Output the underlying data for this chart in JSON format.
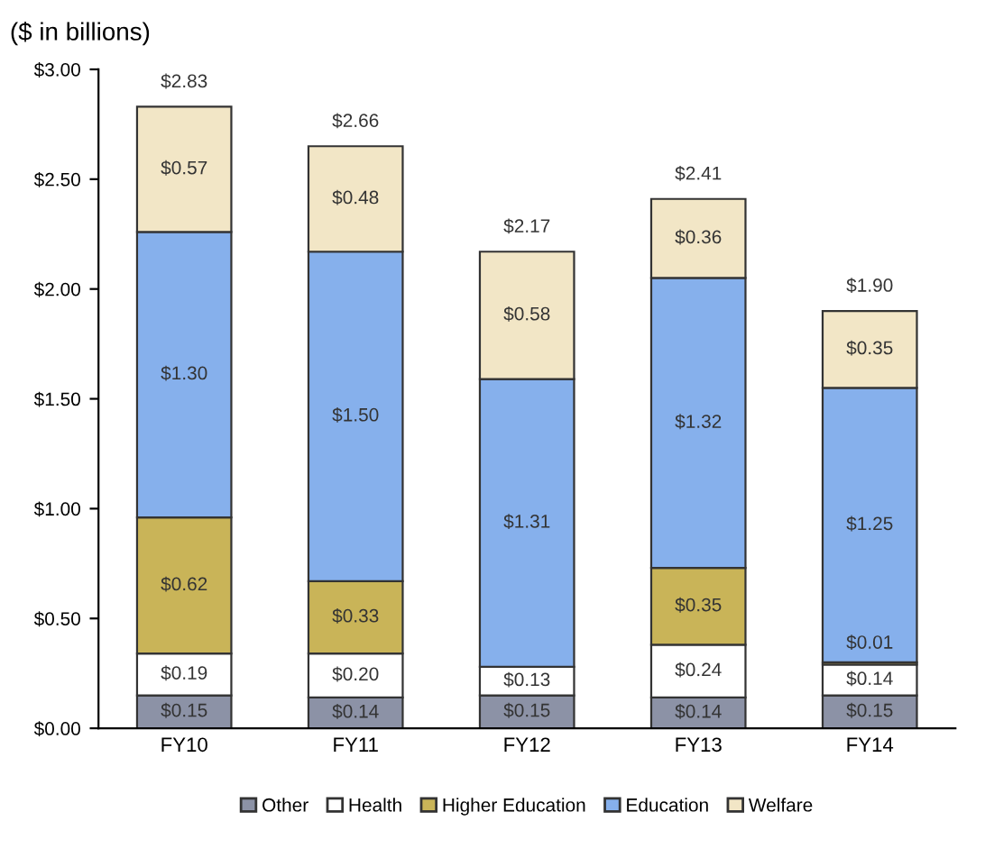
{
  "chart_data": {
    "type": "bar",
    "stacked": true,
    "title": "($ in billions)",
    "categories": [
      "FY10",
      "FY11",
      "FY12",
      "FY13",
      "FY14"
    ],
    "series": [
      {
        "name": "Other",
        "color": "#8c92a6",
        "values": [
          0.15,
          0.14,
          0.15,
          0.14,
          0.15
        ],
        "value_labels": [
          "$0.15",
          "$0.14",
          "$0.15",
          "$0.14",
          "$0.15"
        ]
      },
      {
        "name": "Health",
        "color": "#ffffff",
        "values": [
          0.19,
          0.2,
          0.13,
          0.24,
          0.14
        ],
        "value_labels": [
          "$0.19",
          "$0.20",
          "$0.13",
          "$0.24",
          "$0.14"
        ]
      },
      {
        "name": "Higher Education",
        "color": "#c9b458",
        "values": [
          0.62,
          0.33,
          null,
          0.35,
          0.01
        ],
        "value_labels": [
          "$0.62",
          "$0.33",
          null,
          "$0.35",
          "$0.01"
        ]
      },
      {
        "name": "Education",
        "color": "#86b0ec",
        "values": [
          1.3,
          1.5,
          1.31,
          1.32,
          1.25
        ],
        "value_labels": [
          "$1.30",
          "$1.50",
          "$1.31",
          "$1.32",
          "$1.25"
        ]
      },
      {
        "name": "Welfare",
        "color": "#f2e6c6",
        "values": [
          0.57,
          0.48,
          0.58,
          0.36,
          0.35
        ],
        "value_labels": [
          "$0.57",
          "$0.48",
          "$0.58",
          "$0.36",
          "$0.35"
        ]
      }
    ],
    "totals": [
      "$2.83",
      "$2.66",
      "$2.17",
      "$2.41",
      "$1.90"
    ],
    "ylim": [
      0,
      3
    ],
    "yticks": [
      {
        "value": 0,
        "label": "$0.00"
      },
      {
        "value": 0.5,
        "label": "$0.50"
      },
      {
        "value": 1,
        "label": "$1.00"
      },
      {
        "value": 1.5,
        "label": "$1.50"
      },
      {
        "value": 2,
        "label": "$2.00"
      },
      {
        "value": 2.5,
        "label": "$2.50"
      },
      {
        "value": 3,
        "label": "$3.00"
      }
    ],
    "grid": false,
    "legend": "bottom"
  }
}
